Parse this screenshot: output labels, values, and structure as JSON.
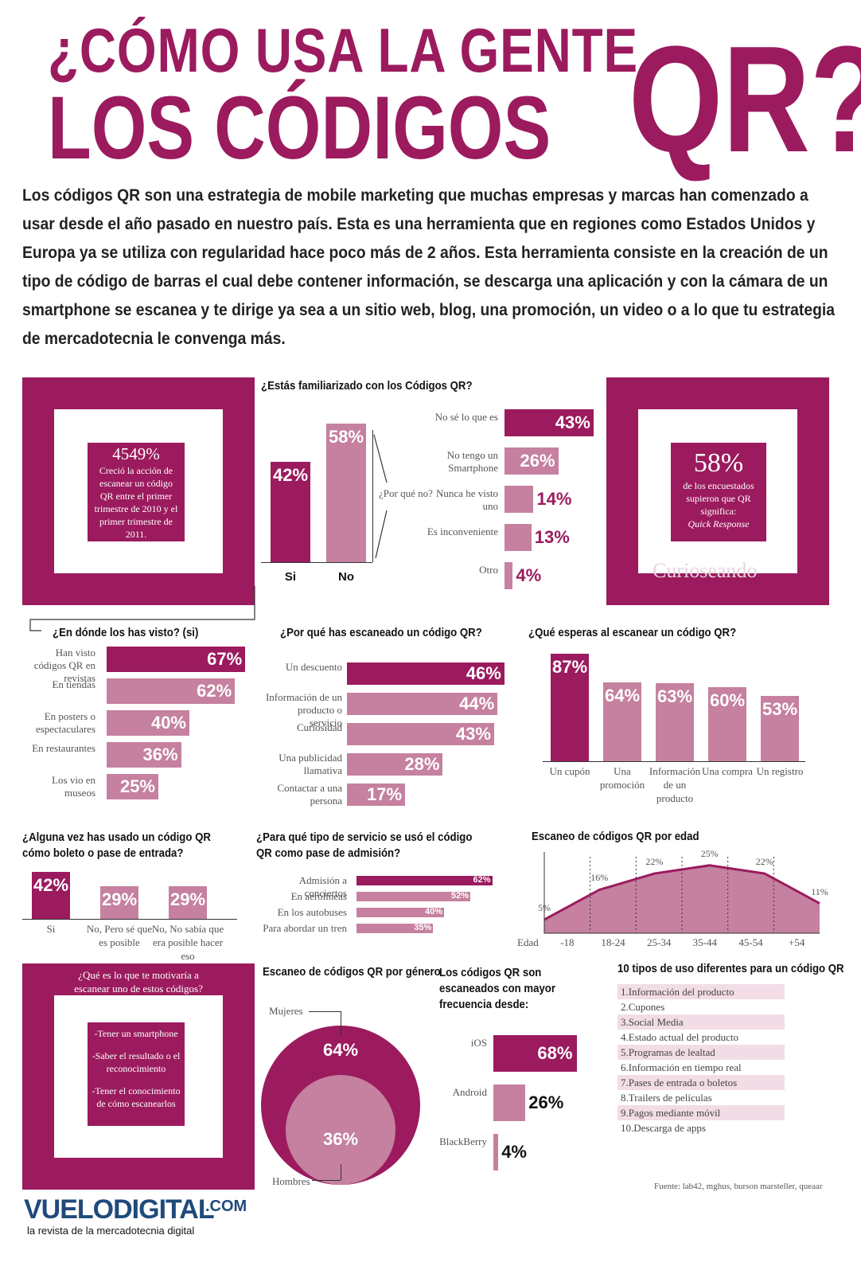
{
  "title": {
    "line1": "¿CÓMO USA LA GENTE",
    "line2": "LOS CÓDIGOS",
    "qr": "QR?"
  },
  "intro": "Los códigos QR son una estrategia de mobile marketing que muchas empresas y marcas han comenzado a usar desde el año pasado en nuestro país. Esta es una herramienta que en regiones como Estados Unidos y Europa ya se utiliza con regularidad hace poco más de 2 años. Esta herramienta consiste en la creación de un tipo de código de barras el cual debe contener información, se descarga una aplicación y con la cámara de un smartphone se escanea y te dirige ya sea a un sitio web, blog, una promoción, un video o a lo que tu estrategia de mercadotecnia le convenga más.",
  "colors": {
    "dark": "#9b1b5e",
    "light": "#c5819f",
    "pale": "#f2dde6"
  },
  "stat_left": {
    "value": "4549%",
    "text": "Creció la acción de escanear un código QR entre el primer trimestre de 2010 y el primer trimestre de 2011."
  },
  "stat_right": {
    "value": "58%",
    "text": "de los encuestados supieron que QR significa:",
    "em": "Quick Response",
    "watermark": "Curioseando"
  },
  "chart_data": [
    {
      "type": "bar",
      "title": "¿Estás familiarizado con los Códigos QR?",
      "categories": [
        "Si",
        "No"
      ],
      "values": [
        42,
        58
      ],
      "labels": [
        "42%",
        "58%"
      ],
      "annotation": "¿Por qué no?"
    },
    {
      "type": "bar",
      "orientation": "horizontal",
      "title": "",
      "categories": [
        "No sé lo que es",
        "No tengo un Smartphone",
        "Nunca he visto uno",
        "Es inconveniente",
        "Otro"
      ],
      "values": [
        43,
        26,
        14,
        13,
        4
      ],
      "labels": [
        "43%",
        "26%",
        "14%",
        "13%",
        "4%"
      ]
    },
    {
      "type": "bar",
      "orientation": "horizontal",
      "title": "¿En dónde los has visto? (si)",
      "categories": [
        "Han visto códigos QR en revistas",
        "En tiendas",
        "En posters o espectaculares",
        "En restaurantes",
        "Los vio en museos"
      ],
      "values": [
        67,
        62,
        40,
        36,
        25
      ],
      "labels": [
        "67%",
        "62%",
        "40%",
        "36%",
        "25%"
      ]
    },
    {
      "type": "bar",
      "orientation": "horizontal",
      "title": "¿Por qué has escaneado un código QR?",
      "categories": [
        "Un descuento",
        "Información de un producto o servicio",
        "Curiosidad",
        "Una publicidad llamativa",
        "Contactar a una persona"
      ],
      "values": [
        46,
        44,
        43,
        28,
        17
      ],
      "labels": [
        "46%",
        "44%",
        "43%",
        "28%",
        "17%"
      ]
    },
    {
      "type": "bar",
      "title": "¿Qué esperas al escanear un código QR?",
      "categories": [
        "Un cupón",
        "Una promoción",
        "Información de un producto",
        "Una compra",
        "Un registro"
      ],
      "values": [
        87,
        64,
        63,
        60,
        53
      ],
      "labels": [
        "87%",
        "64%",
        "63%",
        "60%",
        "53%"
      ]
    },
    {
      "type": "bar",
      "title": "¿Alguna vez has usado un código QR cómo boleto o pase de entrada?",
      "categories": [
        "Si",
        "No, Pero sé que es posible",
        "No, No sabía que era posible hacer eso"
      ],
      "values": [
        42,
        29,
        29
      ],
      "labels": [
        "42%",
        "29%",
        "29%"
      ]
    },
    {
      "type": "bar",
      "orientation": "horizontal",
      "title": "¿Para qué tipo de servicio se usó el código QR como pase de admisión?",
      "categories": [
        "Admisión a conciertos",
        "En aerolíneas",
        "En los autobuses",
        "Para abordar un tren"
      ],
      "values": [
        62,
        52,
        40,
        35
      ],
      "labels": [
        "62%",
        "52%",
        "40%",
        "35%"
      ]
    },
    {
      "type": "area",
      "title": "Escaneo de códigos QR por edad",
      "xlabel": "Edad",
      "categories": [
        "-18",
        "18-24",
        "25-34",
        "35-44",
        "45-54",
        "+54"
      ],
      "values": [
        5,
        16,
        22,
        25,
        22,
        11
      ],
      "labels": [
        "5%",
        "16%",
        "22%",
        "25%",
        "22%",
        "11%"
      ]
    },
    {
      "type": "pie",
      "title": "Escaneo de códigos QR por género",
      "categories": [
        "Mujeres",
        "Hombres"
      ],
      "values": [
        64,
        36
      ],
      "labels": [
        "64%",
        "36%"
      ]
    },
    {
      "type": "bar",
      "orientation": "horizontal",
      "title": "Los códigos QR son escaneados con mayor frecuencia desde:",
      "categories": [
        "iOS",
        "Android",
        "BlackBerry"
      ],
      "values": [
        68,
        26,
        4
      ],
      "labels": [
        "68%",
        "26%",
        "4%"
      ]
    }
  ],
  "motivation": {
    "question": "¿Qué es lo que te motivaría a escanear uno de estos códigos?",
    "items": [
      "-Tener un smartphone",
      "-Saber el resultado o el reconocimiento",
      "-Tener el conocimiento de cómo escanearlos"
    ]
  },
  "uses": {
    "title": "10 tipos de uso diferentes para un código QR",
    "items": [
      "1.Información del producto",
      "2.Cupones",
      "3.Social Media",
      "4.Estado actual del producto",
      "5.Programas de lealtad",
      "6.Información en tiempo real",
      "7.Pases de entrada o boletos",
      "8.Trailers de películas",
      "9.Pagos mediante móvil",
      "10.Descarga de apps"
    ]
  },
  "source": "Fuente: lab42, mghus, burson marsteller, queaar",
  "brand": {
    "name": "VUELODIGITAL",
    "suffix": ".COM",
    "tagline": "la revista de la mercadotecnia digital"
  }
}
